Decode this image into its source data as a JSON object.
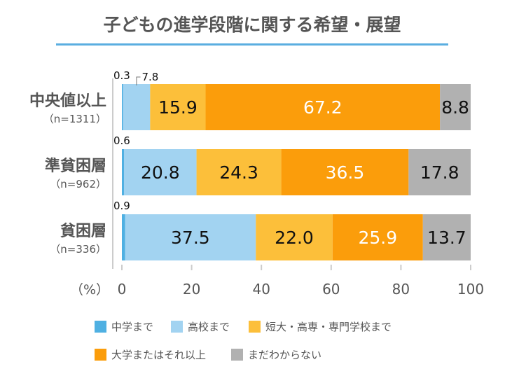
{
  "title": "子どもの進学段階に関する希望・展望",
  "chart_data": {
    "type": "bar",
    "orientation": "horizontal-stacked",
    "title": "子どもの進学段階に関する希望・展望",
    "categories": [
      {
        "label": "中央値以上",
        "n": "（n=1311）"
      },
      {
        "label": "準貧困層",
        "n": "（n=962）"
      },
      {
        "label": "貧困層",
        "n": "（n=336）"
      }
    ],
    "series": [
      {
        "name": "中学まで",
        "color": "#4fb0e2",
        "values": [
          0.3,
          0.6,
          0.9
        ],
        "labels": [
          "0.3",
          "0.6",
          "0.9"
        ],
        "text_color": "#111"
      },
      {
        "name": "高校まで",
        "color": "#a2d3f1",
        "values": [
          7.8,
          20.8,
          37.5
        ],
        "labels": [
          "7.8",
          "20.8",
          "37.5"
        ],
        "text_color": "#111"
      },
      {
        "name": "短大・高専・専門学校まで",
        "color": "#fcbf3a",
        "values": [
          15.9,
          24.3,
          22.0
        ],
        "labels": [
          "15.9",
          "24.3",
          "22.0"
        ],
        "text_color": "#111"
      },
      {
        "name": "大学またはそれ以上",
        "color": "#fb9d0b",
        "values": [
          67.2,
          36.5,
          25.9
        ],
        "labels": [
          "67.2",
          "36.5",
          "25.9"
        ],
        "text_color": "#fff"
      },
      {
        "name": "まだわからない",
        "color": "#b1b1b1",
        "values": [
          8.8,
          17.8,
          13.7
        ],
        "labels": [
          "8.8",
          "17.8",
          "13.7"
        ],
        "text_color": "#111"
      }
    ],
    "xlabel": "（%）",
    "xlim": [
      0,
      100
    ],
    "xticks": [
      "0",
      "20",
      "40",
      "60",
      "80",
      "100"
    ],
    "legend_position": "bottom"
  }
}
